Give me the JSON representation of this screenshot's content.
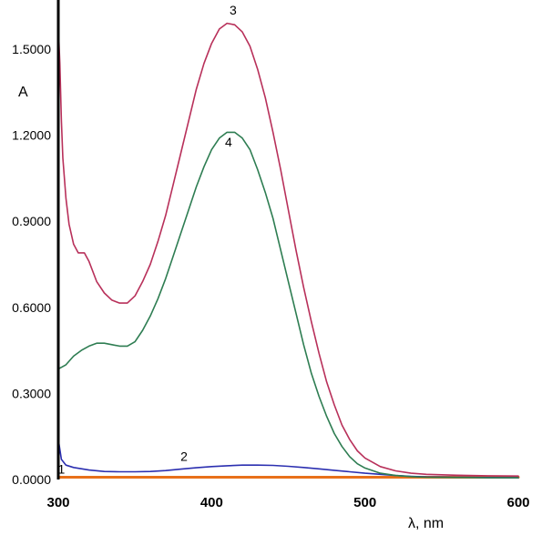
{
  "chart_data": {
    "type": "line",
    "title": "",
    "xlabel": "λ, nm",
    "ylabel": "A",
    "xlim": [
      300,
      600
    ],
    "ylim": [
      0,
      1.6
    ],
    "x_ticks": [
      300,
      400,
      500,
      600
    ],
    "x_tick_labels": [
      "300",
      "400",
      "500",
      "600"
    ],
    "y_ticks": [
      0,
      0.3,
      0.6,
      0.9,
      1.2,
      1.5
    ],
    "y_tick_labels": [
      "0.0000",
      "0.3000",
      "0.6000",
      "0.9000",
      "1.2000",
      "1.5000"
    ],
    "grid": false,
    "legend": "none",
    "series": [
      {
        "label": "1",
        "color": "#e8701a",
        "points": [
          [
            300,
            0.008
          ],
          [
            400,
            0.008
          ],
          [
            500,
            0.008
          ],
          [
            600,
            0.008
          ]
        ]
      },
      {
        "label": "2",
        "color": "#2b2fb0",
        "points": [
          [
            300,
            0.14
          ],
          [
            302,
            0.07
          ],
          [
            305,
            0.05
          ],
          [
            310,
            0.042
          ],
          [
            320,
            0.033
          ],
          [
            330,
            0.028
          ],
          [
            340,
            0.027
          ],
          [
            350,
            0.027
          ],
          [
            360,
            0.028
          ],
          [
            370,
            0.031
          ],
          [
            380,
            0.036
          ],
          [
            390,
            0.041
          ],
          [
            400,
            0.045
          ],
          [
            410,
            0.048
          ],
          [
            420,
            0.05
          ],
          [
            430,
            0.05
          ],
          [
            440,
            0.049
          ],
          [
            450,
            0.046
          ],
          [
            460,
            0.042
          ],
          [
            470,
            0.037
          ],
          [
            480,
            0.032
          ],
          [
            490,
            0.027
          ],
          [
            500,
            0.022
          ],
          [
            510,
            0.018
          ],
          [
            520,
            0.014
          ],
          [
            530,
            0.011
          ],
          [
            540,
            0.009
          ],
          [
            560,
            0.008
          ],
          [
            580,
            0.007
          ],
          [
            600,
            0.006
          ]
        ]
      },
      {
        "label": "3",
        "color": "#b8305a",
        "points": [
          [
            300,
            1.58
          ],
          [
            301,
            1.45
          ],
          [
            302,
            1.25
          ],
          [
            303,
            1.12
          ],
          [
            305,
            0.98
          ],
          [
            307,
            0.89
          ],
          [
            310,
            0.82
          ],
          [
            313,
            0.79
          ],
          [
            317,
            0.79
          ],
          [
            320,
            0.76
          ],
          [
            325,
            0.69
          ],
          [
            330,
            0.65
          ],
          [
            335,
            0.625
          ],
          [
            340,
            0.615
          ],
          [
            345,
            0.615
          ],
          [
            350,
            0.64
          ],
          [
            355,
            0.69
          ],
          [
            360,
            0.75
          ],
          [
            365,
            0.83
          ],
          [
            370,
            0.92
          ],
          [
            375,
            1.03
          ],
          [
            380,
            1.14
          ],
          [
            385,
            1.25
          ],
          [
            390,
            1.36
          ],
          [
            395,
            1.45
          ],
          [
            400,
            1.52
          ],
          [
            405,
            1.57
          ],
          [
            410,
            1.59
          ],
          [
            415,
            1.585
          ],
          [
            420,
            1.56
          ],
          [
            425,
            1.51
          ],
          [
            430,
            1.43
          ],
          [
            435,
            1.33
          ],
          [
            440,
            1.21
          ],
          [
            445,
            1.08
          ],
          [
            450,
            0.94
          ],
          [
            455,
            0.8
          ],
          [
            460,
            0.67
          ],
          [
            465,
            0.55
          ],
          [
            470,
            0.44
          ],
          [
            475,
            0.34
          ],
          [
            480,
            0.26
          ],
          [
            485,
            0.19
          ],
          [
            490,
            0.14
          ],
          [
            495,
            0.1
          ],
          [
            500,
            0.075
          ],
          [
            510,
            0.045
          ],
          [
            520,
            0.03
          ],
          [
            530,
            0.022
          ],
          [
            540,
            0.018
          ],
          [
            560,
            0.015
          ],
          [
            580,
            0.013
          ],
          [
            600,
            0.012
          ]
        ]
      },
      {
        "label": "4",
        "color": "#2e7d52",
        "points": [
          [
            300,
            0.385
          ],
          [
            305,
            0.4
          ],
          [
            310,
            0.43
          ],
          [
            315,
            0.45
          ],
          [
            320,
            0.465
          ],
          [
            325,
            0.475
          ],
          [
            330,
            0.475
          ],
          [
            335,
            0.47
          ],
          [
            340,
            0.465
          ],
          [
            345,
            0.465
          ],
          [
            350,
            0.48
          ],
          [
            355,
            0.52
          ],
          [
            360,
            0.57
          ],
          [
            365,
            0.63
          ],
          [
            370,
            0.7
          ],
          [
            375,
            0.78
          ],
          [
            380,
            0.86
          ],
          [
            385,
            0.94
          ],
          [
            390,
            1.02
          ],
          [
            395,
            1.09
          ],
          [
            400,
            1.15
          ],
          [
            405,
            1.19
          ],
          [
            410,
            1.21
          ],
          [
            415,
            1.21
          ],
          [
            420,
            1.19
          ],
          [
            425,
            1.15
          ],
          [
            430,
            1.08
          ],
          [
            435,
            1.0
          ],
          [
            440,
            0.91
          ],
          [
            445,
            0.8
          ],
          [
            450,
            0.69
          ],
          [
            455,
            0.58
          ],
          [
            460,
            0.47
          ],
          [
            465,
            0.37
          ],
          [
            470,
            0.29
          ],
          [
            475,
            0.22
          ],
          [
            480,
            0.16
          ],
          [
            485,
            0.115
          ],
          [
            490,
            0.08
          ],
          [
            495,
            0.055
          ],
          [
            500,
            0.04
          ],
          [
            510,
            0.022
          ],
          [
            520,
            0.014
          ],
          [
            530,
            0.01
          ],
          [
            540,
            0.008
          ],
          [
            560,
            0.007
          ],
          [
            580,
            0.006
          ],
          [
            600,
            0.006
          ]
        ]
      }
    ],
    "annotations": [
      {
        "text": "1",
        "x": 302,
        "y": 0.02
      },
      {
        "text": "2",
        "x": 382,
        "y": 0.065
      },
      {
        "text": "3",
        "x": 414,
        "y": 1.62
      },
      {
        "text": "4",
        "x": 411,
        "y": 1.16
      }
    ]
  }
}
